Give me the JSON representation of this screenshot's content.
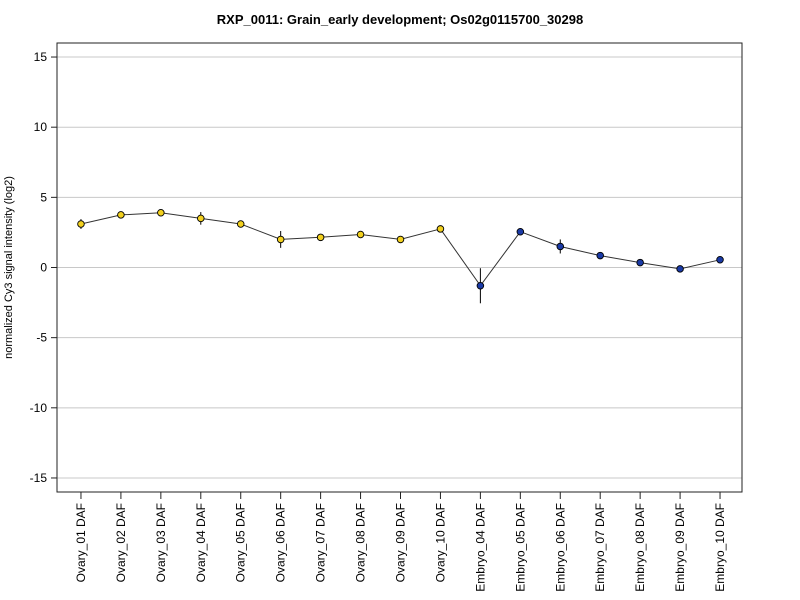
{
  "chart_data": {
    "type": "line",
    "title": "RXP_0011: Grain_early development; Os02g0115700_30298",
    "xlabel": "",
    "ylabel": "normalized Cy3 signal intensity (log2)",
    "ylim": [
      -16,
      16
    ],
    "yticks": [
      15,
      10,
      5,
      0,
      -5,
      -10,
      -15
    ],
    "grid": true,
    "categories": [
      "Ovary_01 DAF",
      "Ovary_02 DAF",
      "Ovary_03 DAF",
      "Ovary_04 DAF",
      "Ovary_05 DAF",
      "Ovary_06 DAF",
      "Ovary_07 DAF",
      "Ovary_08 DAF",
      "Ovary_09 DAF",
      "Ovary_10 DAF",
      "Embryo_04 DAF",
      "Embryo_05 DAF",
      "Embryo_06 DAF",
      "Embryo_07 DAF",
      "Embryo_08 DAF",
      "Embryo_09 DAF",
      "Embryo_10 DAF"
    ],
    "series": [
      {
        "values": [
          3.1,
          3.75,
          3.9,
          3.5,
          3.1,
          2.0,
          2.15,
          2.35,
          2.0,
          2.75,
          -1.3,
          2.55,
          1.5,
          0.85,
          0.35,
          -0.1,
          0.55
        ],
        "error": [
          0.35,
          0.15,
          0.15,
          0.45,
          0.15,
          0.6,
          0.15,
          0.2,
          0.15,
          0.2,
          1.25,
          0.15,
          0.5,
          0.15,
          0.1,
          0.15,
          0.1
        ],
        "point_colors": [
          "#f2d01e",
          "#f2d01e",
          "#f2d01e",
          "#f2d01e",
          "#f2d01e",
          "#f2d01e",
          "#f2d01e",
          "#f2d01e",
          "#f2d01e",
          "#f2d01e",
          "#1a3aa6",
          "#1a3aa6",
          "#1a3aa6",
          "#1a3aa6",
          "#1a3aa6",
          "#1a3aa6",
          "#1a3aa6"
        ]
      }
    ]
  }
}
